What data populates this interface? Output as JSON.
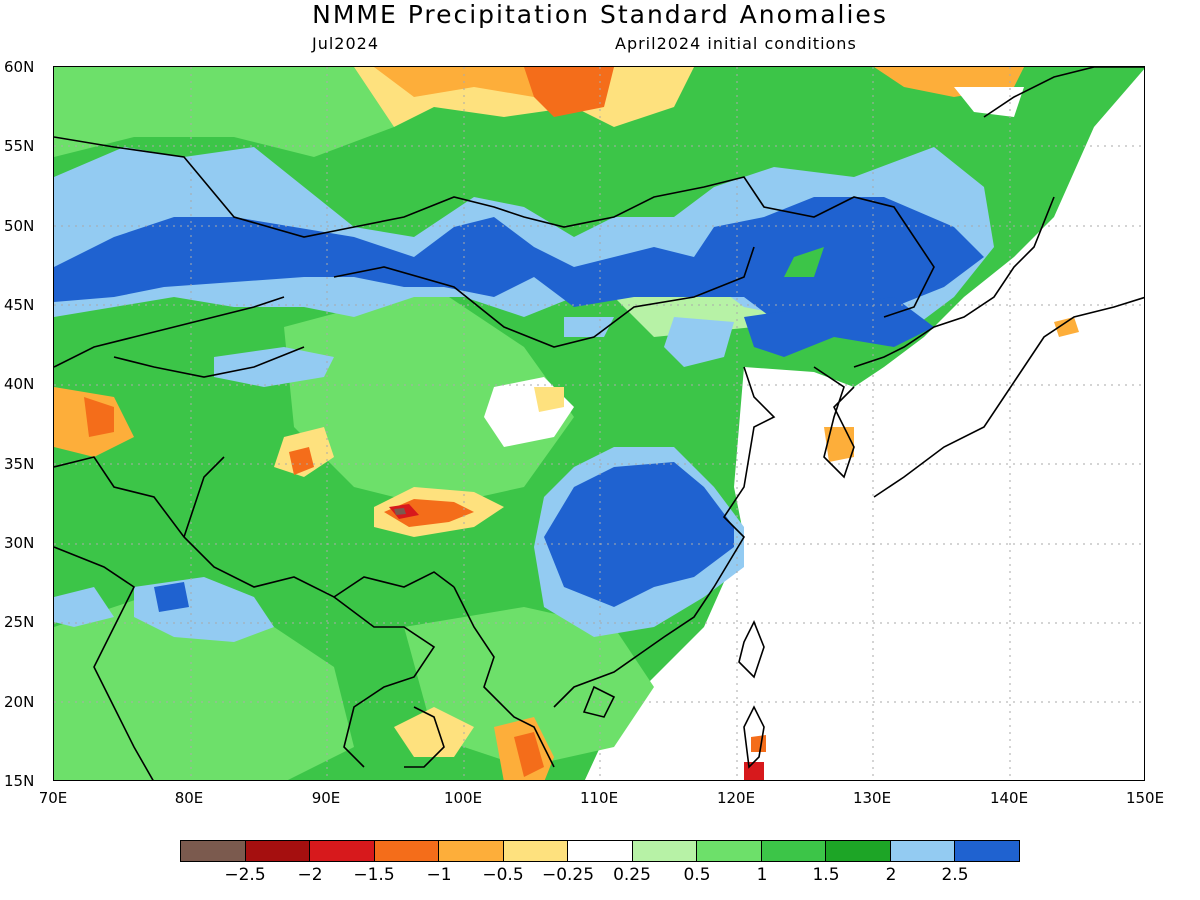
{
  "title": "NMME Precipitation Standard Anomalies",
  "subtitle_left": "Jul2024",
  "subtitle_right": "April2024 initial conditions",
  "lat_labels": [
    "60N",
    "55N",
    "50N",
    "45N",
    "40N",
    "35N",
    "30N",
    "25N",
    "20N",
    "15N"
  ],
  "lon_labels": [
    "70E",
    "80E",
    "90E",
    "100E",
    "110E",
    "120E",
    "130E",
    "140E",
    "150E"
  ],
  "colorbar": {
    "colors": [
      "#7b5a4e",
      "#a50f0f",
      "#d7191c",
      "#f46d1a",
      "#fdae3a",
      "#fee17e",
      "#ffffff",
      "#b7f2a6",
      "#6de06a",
      "#3cc548",
      "#1da526",
      "#93cbf2",
      "#1f62d0"
    ],
    "labels": [
      "−2.5",
      "−2",
      "−1.5",
      "−1",
      "−0.5",
      "−0.25",
      "0.25",
      "0.5",
      "1",
      "1.5",
      "2",
      "2.5"
    ]
  },
  "map": {
    "lon_range": [
      70,
      150
    ],
    "lat_range": [
      15,
      60
    ],
    "gridlines": "dotted",
    "features": "precipitation anomaly shading with coastlines and national borders"
  }
}
